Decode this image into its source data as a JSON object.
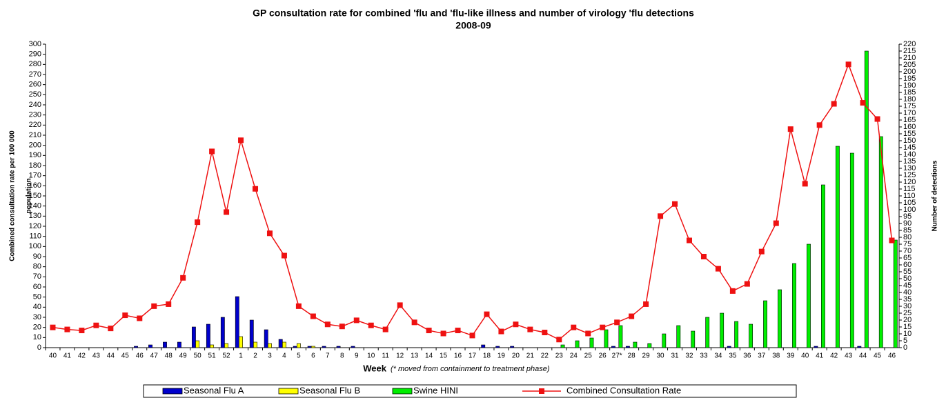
{
  "chart_data": {
    "type": "bar-line",
    "title": [
      "GP consultation rate for combined 'flu and 'flu-like illness and number of virology 'flu detections",
      "2008-09"
    ],
    "ylabel": [
      "Combined consultation rate per 100 000",
      "population"
    ],
    "y2label": "Number of detections",
    "xlabel": "Week",
    "xlabel_note": "(* moved from containment to treatment phase)",
    "categories": [
      "40",
      "41",
      "42",
      "43",
      "44",
      "45",
      "46",
      "47",
      "48",
      "49",
      "50",
      "51",
      "52",
      "1",
      "2",
      "3",
      "4",
      "5",
      "6",
      "7",
      "8",
      "9",
      "10",
      "11",
      "12",
      "13",
      "14",
      "15",
      "16",
      "17",
      "18",
      "19",
      "20",
      "21",
      "22",
      "23",
      "24",
      "25",
      "26",
      "27*",
      "28",
      "29",
      "30",
      "31",
      "32",
      "33",
      "34",
      "35",
      "36",
      "37",
      "38",
      "39",
      "40",
      "41",
      "42",
      "43",
      "44",
      "45",
      "46"
    ],
    "ylim": [
      0,
      300
    ],
    "yticks": [
      0,
      10,
      20,
      30,
      40,
      50,
      60,
      70,
      80,
      90,
      100,
      110,
      120,
      130,
      140,
      150,
      160,
      170,
      180,
      190,
      200,
      210,
      220,
      230,
      240,
      250,
      260,
      270,
      280,
      290,
      300
    ],
    "y2lim": [
      0,
      220
    ],
    "y2ticks": [
      0,
      5,
      10,
      15,
      20,
      25,
      30,
      35,
      40,
      45,
      50,
      55,
      60,
      65,
      70,
      75,
      80,
      85,
      90,
      95,
      100,
      105,
      110,
      115,
      120,
      125,
      130,
      135,
      140,
      145,
      150,
      155,
      160,
      165,
      170,
      175,
      180,
      185,
      190,
      195,
      200,
      205,
      210,
      215,
      220
    ],
    "series": [
      {
        "name": "Seasonal Flu A",
        "color": "#0000cc",
        "axis": "y2",
        "kind": "bar",
        "values": [
          0,
          0,
          0,
          0,
          0,
          0,
          1,
          2,
          4,
          4,
          15,
          17,
          22,
          37,
          20,
          13,
          6,
          1,
          1,
          1,
          1,
          1,
          0,
          0,
          0,
          0,
          0,
          0,
          0,
          0,
          2,
          1,
          1,
          0,
          0,
          0,
          0,
          0,
          0,
          1,
          1,
          0,
          0,
          0,
          0,
          0,
          0,
          1,
          0,
          0,
          0,
          0,
          0,
          1,
          0,
          0,
          1,
          0,
          0
        ]
      },
      {
        "name": "Seasonal Flu B",
        "color": "#ffff00",
        "axis": "y2",
        "kind": "bar",
        "values": [
          0,
          0,
          0,
          0,
          0,
          0,
          0,
          0,
          0,
          0,
          5,
          2,
          3,
          8,
          4,
          3,
          4,
          3,
          1,
          0,
          0,
          0,
          0,
          0,
          0,
          0,
          0,
          0,
          0,
          0,
          0,
          0,
          0,
          0,
          0,
          0,
          0,
          0,
          0,
          0,
          0,
          0,
          0,
          0,
          0,
          0,
          0,
          0,
          0,
          0,
          0,
          0,
          0,
          0,
          0,
          0,
          0,
          0,
          0
        ]
      },
      {
        "name": "Swine HINI",
        "color": "#00ee00",
        "axis": "y2",
        "kind": "bar",
        "values": [
          0,
          0,
          0,
          0,
          0,
          0,
          0,
          0,
          0,
          0,
          0,
          0,
          0,
          0,
          0,
          0,
          0,
          0,
          0,
          0,
          0,
          0,
          0,
          0,
          0,
          0,
          0,
          0,
          0,
          0,
          0,
          0,
          0,
          0,
          0,
          2,
          5,
          7,
          13,
          16,
          4,
          3,
          10,
          16,
          12,
          22,
          25,
          19,
          17,
          34,
          42,
          61,
          75,
          118,
          146,
          141,
          215,
          153,
          78
        ]
      },
      {
        "name": "Combined Consultation Rate",
        "color": "#ee1111",
        "axis": "y",
        "kind": "line",
        "values": [
          20,
          18,
          17,
          22,
          19,
          32,
          29,
          41,
          43,
          69,
          124,
          194,
          134,
          205,
          157,
          113,
          91,
          41,
          31,
          23,
          21,
          27,
          22,
          18,
          42,
          25,
          17,
          14,
          17,
          12,
          33,
          16,
          23,
          18,
          15,
          8,
          20,
          14,
          20,
          25,
          31,
          43,
          130,
          142,
          106,
          90,
          78,
          56,
          63,
          95,
          123,
          216,
          162,
          220,
          241,
          280,
          242,
          226,
          106
        ]
      }
    ]
  }
}
